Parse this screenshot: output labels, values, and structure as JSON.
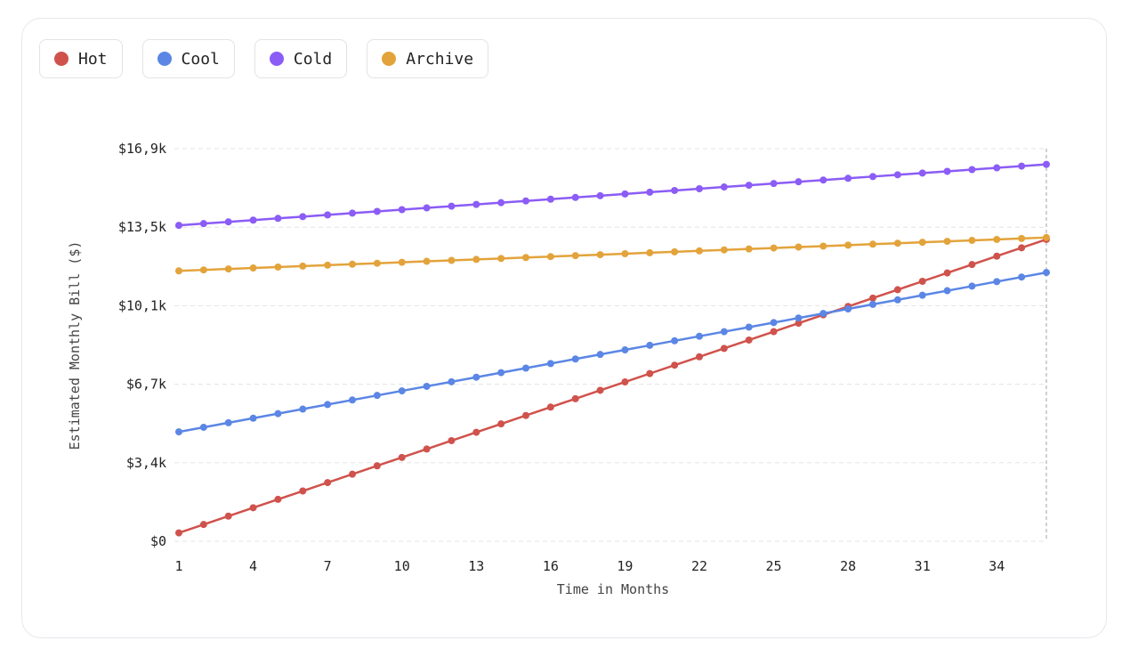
{
  "chart_data": {
    "type": "line",
    "xlabel": "Time in Months",
    "ylabel": "Estimated Monthly Bill ($)",
    "x": [
      1,
      2,
      3,
      4,
      5,
      6,
      7,
      8,
      9,
      10,
      11,
      12,
      13,
      14,
      15,
      16,
      17,
      18,
      19,
      20,
      21,
      22,
      23,
      24,
      25,
      26,
      27,
      28,
      29,
      30,
      31,
      32,
      33,
      34,
      35,
      36
    ],
    "x_ticks": [
      1,
      4,
      7,
      10,
      13,
      16,
      19,
      22,
      25,
      28,
      31,
      34
    ],
    "xlim": [
      1,
      36
    ],
    "y_ticks": [
      {
        "value": 0,
        "label": "$0"
      },
      {
        "value": 3380,
        "label": "$3,4k"
      },
      {
        "value": 6760,
        "label": "$6,7k"
      },
      {
        "value": 10140,
        "label": "$10,1k"
      },
      {
        "value": 13520,
        "label": "$13,5k"
      },
      {
        "value": 16900,
        "label": "$16,9k"
      }
    ],
    "ylim": [
      0,
      16900
    ],
    "grid": true,
    "legend_position": "top-left",
    "hover_x": 36,
    "series": [
      {
        "name": "Hot",
        "color": "#d0524c",
        "start": 360,
        "step": 361
      },
      {
        "name": "Cool",
        "color": "#5b86e5",
        "start": 4710,
        "step": 196
      },
      {
        "name": "Cold",
        "color": "#8b5cf6",
        "start": 13600,
        "step": 75
      },
      {
        "name": "Archive",
        "color": "#e3a33b",
        "start": 11640,
        "step": 41
      }
    ]
  }
}
